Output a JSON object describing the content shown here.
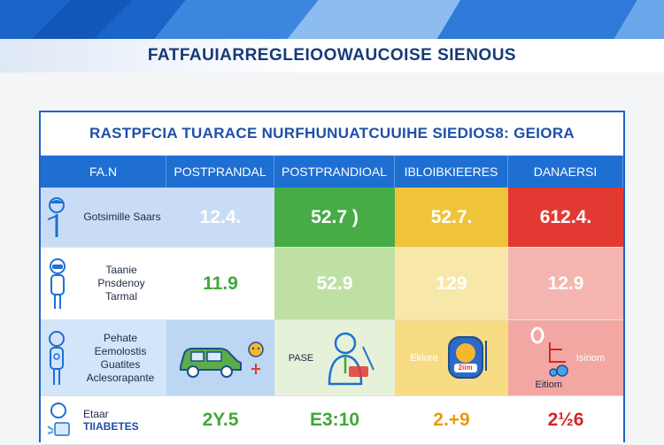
{
  "page": {
    "title": "FATFAUIARREGLEIOOWAUCOISE SIENOUS"
  },
  "table": {
    "subtitle": "RASTPFCIA TUARACE NURFHUNUATCUUIHE SIEDIOS8: GEIORA",
    "headers": [
      "FA.N",
      "POSTPRANDAL",
      "POSTPRANDIOAL",
      "IBLOIBKIEERES",
      "DANAERSI"
    ],
    "rows": [
      {
        "label": "Gotsimille Saars",
        "values": [
          "12.4.",
          "52.7 )",
          "52.7.",
          "612.4."
        ]
      },
      {
        "label_lines": [
          "Taanie",
          "Pnsdenoy",
          "Tarmal"
        ],
        "values": [
          "11.9",
          "52.9",
          "129",
          "12.9"
        ]
      },
      {
        "label_lines": [
          "Pehate",
          "Eemolostis",
          "Guatites",
          "Aclesorapante"
        ],
        "captions": [
          "PASE",
          "Eklure",
          "Eitiom",
          "Isiriom"
        ],
        "badge": "2iim"
      },
      {
        "label_lines": [
          "Etaar",
          "TIIABETES"
        ],
        "values": [
          "2Y.5",
          "E3:10",
          "2.+9",
          "2½6"
        ]
      }
    ]
  },
  "colors": {
    "header_blue": "#1f6fd3",
    "normal_green": "#48ac46",
    "caution_yellow": "#f0c43a",
    "danger_red": "#e23a33"
  },
  "icons": [
    "person-icon",
    "mask-person-icon",
    "person-outline-icon",
    "car-icon",
    "emoji-face-icon",
    "doctor-icon",
    "medical-badge-icon",
    "wheelchair-icon",
    "glucose-meter-icon"
  ]
}
